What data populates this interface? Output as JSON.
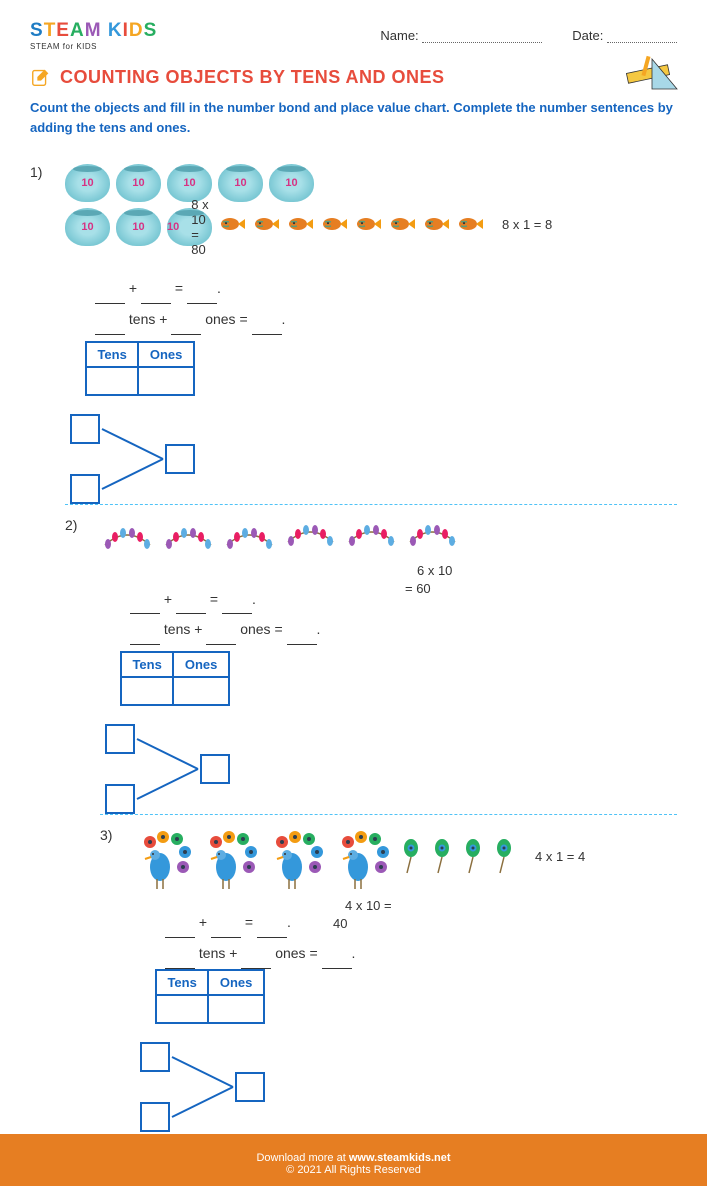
{
  "header": {
    "logo_text": "STEAM KIDS",
    "logo_sub": "STEAM for KIDS",
    "name_label": "Name:",
    "date_label": "Date:"
  },
  "title": "COUNTING OBJECTS BY TENS AND ONES",
  "instructions": "Count the objects and fill in the number bond and place value chart. Complete the number sentences by adding the tens and ones.",
  "table_headers": {
    "tens": "Tens",
    "ones": "Ones"
  },
  "sentences": {
    "sum": "___ + ___ = ___.",
    "tens_ones": "___ tens + ___ ones = ___."
  },
  "problems": [
    {
      "num": "1)",
      "tens_objects": "fishbowl",
      "tens_count": 8,
      "tens_per_row": 5,
      "ones_objects": "fish",
      "ones_count": 8,
      "equations": [
        "8 x 10 = 80",
        "8 x 1 = 8"
      ],
      "object_label": "10"
    },
    {
      "num": "2)",
      "tens_objects": "garland",
      "tens_count": 6,
      "tens_per_row": 3,
      "ones_objects": null,
      "ones_count": 0,
      "equations": [
        "6 x 10 = 60"
      ],
      "object_label": ""
    },
    {
      "num": "3)",
      "tens_objects": "peacock",
      "tens_count": 4,
      "tens_per_row": 4,
      "ones_objects": "feather",
      "ones_count": 4,
      "equations": [
        "4 x 10 = 40",
        "4 x 1 = 4"
      ],
      "object_label": ""
    }
  ],
  "footer": {
    "download": "Download more at",
    "url": "www.steamkids.net",
    "copyright": "© 2021 All Rights Reserved"
  },
  "colors": {
    "title": "#e74c3c",
    "instruction": "#1565c0",
    "border": "#1565c0",
    "divider": "#4fc3f7",
    "footer_bg": "#e67e22"
  }
}
